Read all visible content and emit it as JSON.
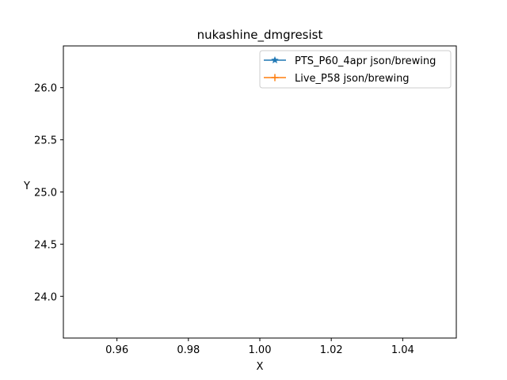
{
  "chart_data": {
    "type": "line",
    "title": "nukashine_dmgresist",
    "xlabel": "X",
    "ylabel": "Y",
    "xlim": [
      0.945,
      1.055
    ],
    "ylim": [
      23.6,
      26.4
    ],
    "xticks": [
      0.96,
      0.98,
      1.0,
      1.02,
      1.04
    ],
    "xtick_labels": [
      "0.96",
      "0.98",
      "1.00",
      "1.02",
      "1.04"
    ],
    "yticks": [
      24.0,
      24.5,
      25.0,
      25.5,
      26.0
    ],
    "ytick_labels": [
      "24.0",
      "24.5",
      "25.0",
      "25.5",
      "26.0"
    ],
    "grid": false,
    "legend_position": "top-right",
    "series": [
      {
        "name": "PTS_P60_4apr json/brewing",
        "color": "#1f77b4",
        "marker": "star",
        "x": [],
        "y": []
      },
      {
        "name": "Live_P58 json/brewing",
        "color": "#ff7f0e",
        "marker": "plus",
        "x": [],
        "y": []
      }
    ]
  }
}
